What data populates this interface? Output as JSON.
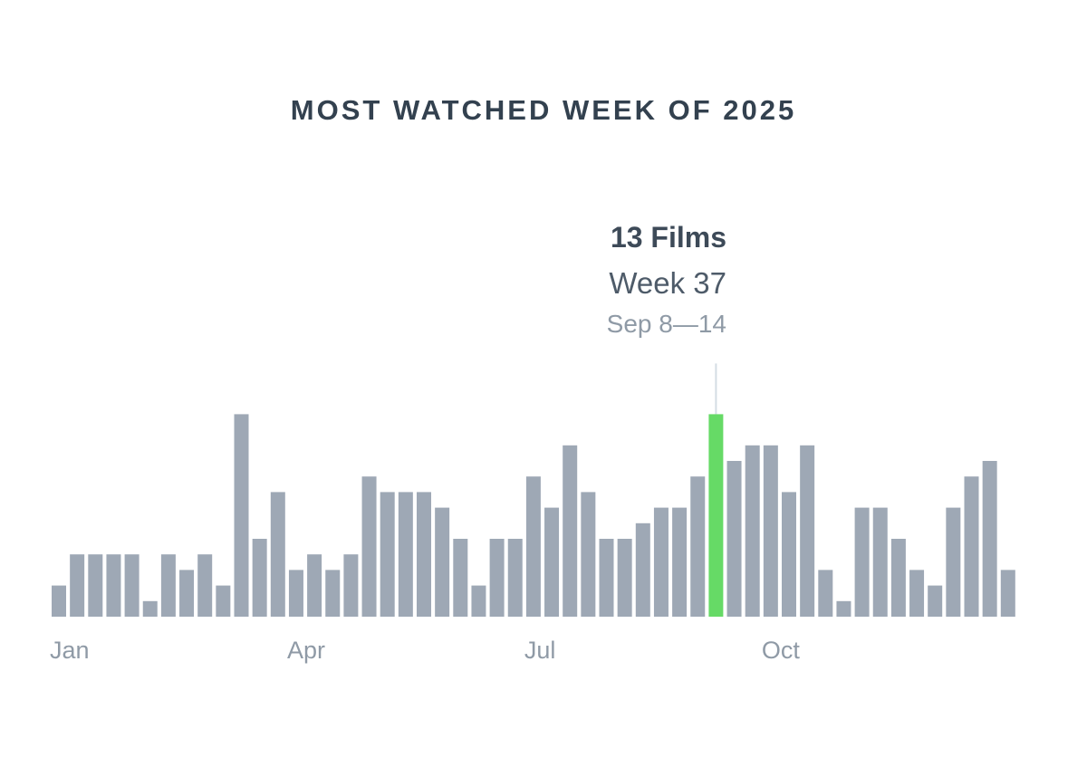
{
  "title": "MOST WATCHED WEEK OF 2025",
  "tooltip": {
    "films": "13 Films",
    "week": "Week 37",
    "range": "Sep 8—14"
  },
  "colors": {
    "bar": "#9ea8b5",
    "highlight": "#66da66",
    "marker": "#d4dde4"
  },
  "chart_data": {
    "type": "bar",
    "title": "MOST WATCHED WEEK OF 2025",
    "xlabel": "",
    "ylabel": "Films",
    "x_tick_labels": [
      "Jan",
      "Apr",
      "Jul",
      "Oct"
    ],
    "x_tick_weeks": [
      1,
      14,
      27,
      40
    ],
    "categories": [
      1,
      2,
      3,
      4,
      5,
      6,
      7,
      8,
      9,
      10,
      11,
      12,
      13,
      14,
      15,
      16,
      17,
      18,
      19,
      20,
      21,
      22,
      23,
      24,
      25,
      26,
      27,
      28,
      29,
      30,
      31,
      32,
      33,
      34,
      35,
      36,
      37,
      38,
      39,
      40,
      41,
      42,
      43,
      44,
      45,
      46,
      47,
      48,
      49,
      50,
      51,
      52,
      53
    ],
    "values": [
      2,
      4,
      4,
      4,
      4,
      1,
      4,
      3,
      4,
      2,
      13,
      5,
      8,
      3,
      4,
      3,
      4,
      9,
      8,
      8,
      8,
      7,
      5,
      2,
      5,
      5,
      9,
      7,
      11,
      8,
      5,
      5,
      6,
      7,
      7,
      9,
      13,
      10,
      11,
      11,
      8,
      11,
      3,
      1,
      7,
      7,
      5,
      3,
      2,
      7,
      9,
      10,
      3
    ],
    "highlight_week": 37,
    "ylim": [
      0,
      13
    ],
    "grid": false,
    "legend": "none"
  }
}
